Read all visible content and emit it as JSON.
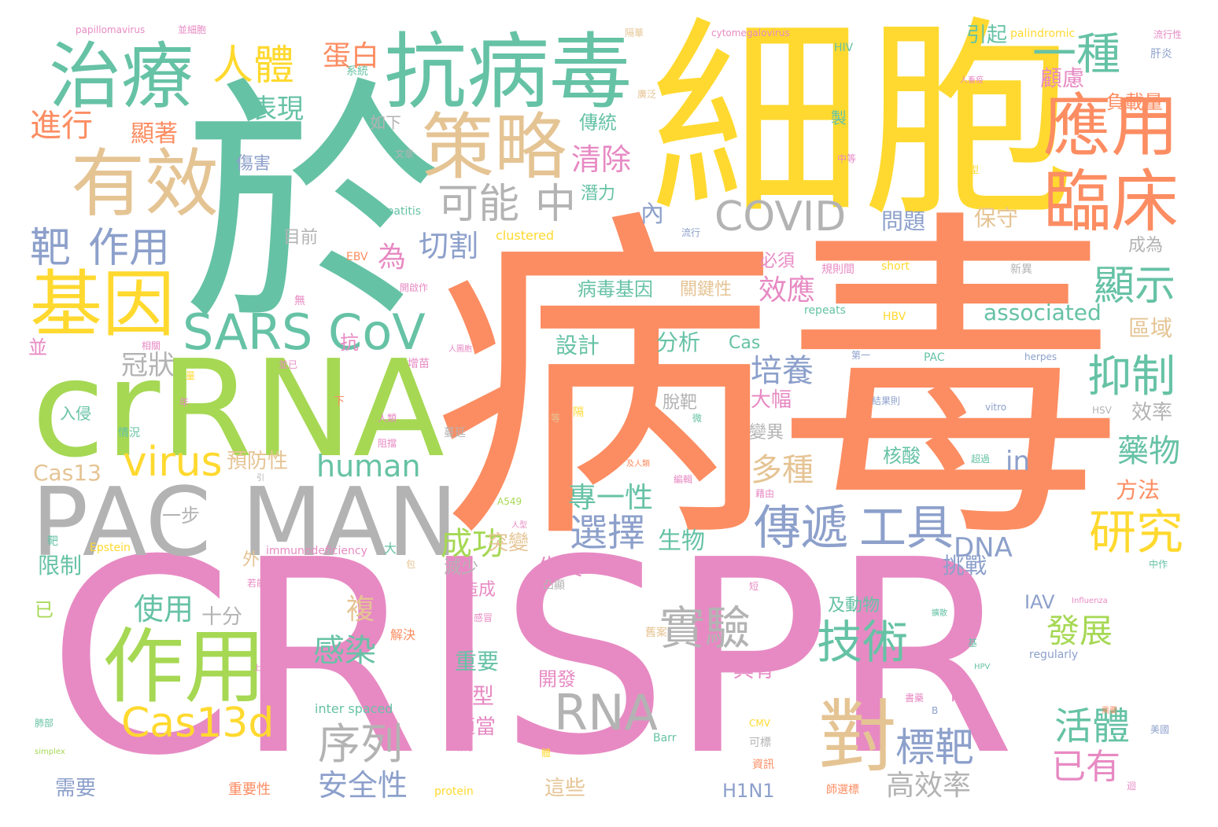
{
  "palette": {
    "pink": "#e78ac3",
    "orange": "#fc8d62",
    "teal": "#66c2a5",
    "yellow": "#ffd92f",
    "green": "#a6d854",
    "tan": "#e5c494",
    "grey": "#b3b3b3",
    "blue": "#8da0cb"
  },
  "words": [
    {
      "text": "CRISPR",
      "color": "pink"
    },
    {
      "text": "病毒",
      "color": "orange"
    },
    {
      "text": "細胞",
      "color": "yellow"
    },
    {
      "text": "於",
      "color": "teal"
    },
    {
      "text": "crRNA",
      "color": "green"
    },
    {
      "text": "PAC MAN",
      "color": "grey"
    },
    {
      "text": "抗病毒",
      "color": "teal"
    },
    {
      "text": "策略",
      "color": "tan"
    },
    {
      "text": "治療",
      "color": "teal"
    },
    {
      "text": "有效",
      "color": "tan"
    },
    {
      "text": "基因",
      "color": "yellow"
    },
    {
      "text": "作用",
      "color": "green"
    },
    {
      "text": "應用",
      "color": "orange"
    },
    {
      "text": "臨床",
      "color": "orange"
    },
    {
      "text": "SARS CoV",
      "color": "teal"
    },
    {
      "text": "COVID",
      "color": "grey"
    },
    {
      "text": "傳遞",
      "color": "blue"
    },
    {
      "text": "工具",
      "color": "blue"
    },
    {
      "text": "RNA",
      "color": "grey"
    },
    {
      "text": "對",
      "color": "tan"
    },
    {
      "text": "一種",
      "color": "teal"
    },
    {
      "text": "人體",
      "color": "yellow"
    },
    {
      "text": "靶",
      "color": "blue"
    },
    {
      "text": "作用",
      "color": "blue"
    },
    {
      "text": "可能",
      "color": "grey"
    },
    {
      "text": "中",
      "color": "grey"
    },
    {
      "text": "virus",
      "color": "yellow"
    },
    {
      "text": "Cas13d",
      "color": "yellow"
    },
    {
      "text": "實驗",
      "color": "grey"
    },
    {
      "text": "技術",
      "color": "teal"
    },
    {
      "text": "研究",
      "color": "yellow"
    },
    {
      "text": "抑制",
      "color": "teal"
    },
    {
      "text": "顯示",
      "color": "teal"
    },
    {
      "text": "序列",
      "color": "grey"
    },
    {
      "text": "標靶",
      "color": "blue"
    },
    {
      "text": "選擇",
      "color": "blue"
    },
    {
      "text": "活體",
      "color": "teal"
    },
    {
      "text": "已有",
      "color": "pink"
    },
    {
      "text": "進行",
      "color": "orange"
    },
    {
      "text": "表現",
      "color": "teal"
    },
    {
      "text": "蛋白",
      "color": "orange"
    },
    {
      "text": "清除",
      "color": "pink"
    },
    {
      "text": "切割",
      "color": "blue"
    },
    {
      "text": "冠狀",
      "color": "grey"
    },
    {
      "text": "培養",
      "color": "blue"
    },
    {
      "text": "多種",
      "color": "tan"
    },
    {
      "text": "human",
      "color": "teal"
    },
    {
      "text": "藥物",
      "color": "teal"
    },
    {
      "text": "發展",
      "color": "green"
    },
    {
      "text": "感染",
      "color": "teal"
    },
    {
      "text": "使用",
      "color": "teal"
    },
    {
      "text": "安全性",
      "color": "blue"
    },
    {
      "text": "成功",
      "color": "green"
    },
    {
      "text": "專一性",
      "color": "teal"
    },
    {
      "text": "DNA",
      "color": "blue"
    },
    {
      "text": "in",
      "color": "blue"
    },
    {
      "text": "高效率",
      "color": "grey"
    },
    {
      "text": "顧慮",
      "color": "pink"
    },
    {
      "text": "負載量",
      "color": "orange"
    },
    {
      "text": "顯著",
      "color": "orange"
    },
    {
      "text": "傳統",
      "color": "teal"
    },
    {
      "text": "為",
      "color": "pink"
    },
    {
      "text": "內",
      "color": "blue"
    },
    {
      "text": "病毒基因",
      "color": "teal"
    },
    {
      "text": "效應",
      "color": "pink"
    },
    {
      "text": "associated",
      "color": "teal"
    },
    {
      "text": "問題",
      "color": "blue"
    },
    {
      "text": "保守",
      "color": "tan"
    },
    {
      "text": "區域",
      "color": "tan"
    },
    {
      "text": "Cas13",
      "color": "tan"
    },
    {
      "text": "設計",
      "color": "teal"
    },
    {
      "text": "分析",
      "color": "teal"
    },
    {
      "text": "生長",
      "color": "pink"
    },
    {
      "text": "生物",
      "color": "teal"
    },
    {
      "text": "複",
      "color": "tan"
    },
    {
      "text": "突變",
      "color": "tan"
    },
    {
      "text": "挑戰",
      "color": "blue"
    },
    {
      "text": "效率",
      "color": "grey"
    },
    {
      "text": "方法",
      "color": "orange"
    },
    {
      "text": "限制",
      "color": "teal"
    },
    {
      "text": "十分",
      "color": "grey"
    },
    {
      "text": "一步",
      "color": "grey"
    },
    {
      "text": "預防性",
      "color": "tan"
    },
    {
      "text": "重要",
      "color": "teal"
    },
    {
      "text": "開發",
      "color": "pink"
    },
    {
      "text": "具有",
      "color": "pink"
    },
    {
      "text": "新型",
      "color": "pink"
    },
    {
      "text": "時",
      "color": "pink"
    },
    {
      "text": "適當",
      "color": "pink"
    },
    {
      "text": "這些",
      "color": "tan"
    },
    {
      "text": "需要",
      "color": "blue"
    },
    {
      "text": "H1N1",
      "color": "blue"
    },
    {
      "text": "IAV",
      "color": "blue"
    },
    {
      "text": "引起",
      "color": "teal"
    },
    {
      "text": "如下",
      "color": "grey"
    },
    {
      "text": "傷害",
      "color": "blue"
    },
    {
      "text": "潛力",
      "color": "teal"
    },
    {
      "text": "目前",
      "color": "grey"
    },
    {
      "text": "必須",
      "color": "pink"
    },
    {
      "text": "關鍵性",
      "color": "tan"
    },
    {
      "text": "成為",
      "color": "grey"
    },
    {
      "text": "大幅",
      "color": "pink"
    },
    {
      "text": "脫靶",
      "color": "grey"
    },
    {
      "text": "變異",
      "color": "grey"
    },
    {
      "text": "核酸",
      "color": "teal"
    },
    {
      "text": "及動物",
      "color": "teal"
    },
    {
      "text": "減少",
      "color": "grey"
    },
    {
      "text": "造成",
      "color": "pink"
    },
    {
      "text": "外",
      "color": "tan"
    },
    {
      "text": "抗",
      "color": "pink"
    },
    {
      "text": "並",
      "color": "pink"
    },
    {
      "text": "已",
      "color": "green"
    },
    {
      "text": "入侵",
      "color": "teal"
    },
    {
      "text": "Cas",
      "color": "teal"
    },
    {
      "text": "製",
      "color": "teal"
    },
    {
      "text": "palindromic",
      "color": "yellow"
    },
    {
      "text": "HIV",
      "color": "teal"
    },
    {
      "text": "肝炎",
      "color": "blue"
    },
    {
      "text": "流行性",
      "color": "pink"
    },
    {
      "text": "cytomegalovirus",
      "color": "pink"
    },
    {
      "text": "papillomavirus",
      "color": "pink"
    },
    {
      "text": "系統",
      "color": "teal"
    },
    {
      "text": "clustered",
      "color": "yellow"
    },
    {
      "text": "hepatitis",
      "color": "teal"
    },
    {
      "text": "EBV",
      "color": "orange"
    },
    {
      "text": "short",
      "color": "yellow"
    },
    {
      "text": "repeats",
      "color": "teal"
    },
    {
      "text": "HBV",
      "color": "yellow"
    },
    {
      "text": "規則間",
      "color": "pink"
    },
    {
      "text": "新異",
      "color": "grey"
    },
    {
      "text": "流行",
      "color": "blue"
    },
    {
      "text": "B型",
      "color": "yellow"
    },
    {
      "text": "中等",
      "color": "pink"
    },
    {
      "text": "文章",
      "color": "grey"
    },
    {
      "text": "廣泛",
      "color": "tan"
    },
    {
      "text": "人畜疫",
      "color": "pink"
    },
    {
      "text": "隔華",
      "color": "tan"
    },
    {
      "text": "並細胞",
      "color": "pink"
    },
    {
      "text": "PAC",
      "color": "teal"
    },
    {
      "text": "herpes",
      "color": "blue"
    },
    {
      "text": "vitro",
      "color": "blue"
    },
    {
      "text": "HSV",
      "color": "grey"
    },
    {
      "text": "第一",
      "color": "blue"
    },
    {
      "text": "結果則",
      "color": "blue"
    },
    {
      "text": "超過",
      "color": "teal"
    },
    {
      "text": "immunodeficiency",
      "color": "pink"
    },
    {
      "text": "Epstein",
      "color": "yellow"
    },
    {
      "text": "大",
      "color": "teal"
    },
    {
      "text": "A549",
      "color": "green"
    },
    {
      "text": "編輯",
      "color": "pink"
    },
    {
      "text": "藉由",
      "color": "pink"
    },
    {
      "text": "及人類",
      "color": "orange"
    },
    {
      "text": "凸顯",
      "color": "grey"
    },
    {
      "text": "Influenza",
      "color": "pink"
    },
    {
      "text": "中作",
      "color": "teal"
    },
    {
      "text": "regularly",
      "color": "blue"
    },
    {
      "text": "HPV",
      "color": "teal"
    },
    {
      "text": "inter spaced",
      "color": "teal"
    },
    {
      "text": "protein",
      "color": "yellow"
    },
    {
      "text": "Barr",
      "color": "teal"
    },
    {
      "text": "CMV",
      "color": "yellow"
    },
    {
      "text": "可標",
      "color": "grey"
    },
    {
      "text": "資訊",
      "color": "orange"
    },
    {
      "text": "師選標",
      "color": "orange"
    },
    {
      "text": "重要性",
      "color": "orange"
    },
    {
      "text": "simplex",
      "color": "green"
    },
    {
      "text": "B",
      "color": "blue"
    },
    {
      "text": "美國",
      "color": "blue"
    },
    {
      "text": "若能",
      "color": "pink"
    },
    {
      "text": "相關",
      "color": "pink"
    },
    {
      "text": "情況",
      "color": "teal"
    },
    {
      "text": "下",
      "color": "orange"
    },
    {
      "text": "靶",
      "color": "teal"
    },
    {
      "text": "解決",
      "color": "orange"
    },
    {
      "text": "感冒",
      "color": "pink"
    },
    {
      "text": "體",
      "color": "yellow"
    },
    {
      "text": "肺部",
      "color": "teal"
    },
    {
      "text": "量",
      "color": "yellow"
    },
    {
      "text": "年",
      "color": "pink"
    },
    {
      "text": "短",
      "color": "pink"
    },
    {
      "text": "蔓延",
      "color": "grey"
    },
    {
      "text": "無",
      "color": "pink"
    },
    {
      "text": "開啟作",
      "color": "pink"
    },
    {
      "text": "人類",
      "color": "pink"
    },
    {
      "text": "增苗",
      "color": "pink"
    },
    {
      "text": "並已",
      "color": "pink"
    },
    {
      "text": "隔",
      "color": "yellow"
    },
    {
      "text": "需要",
      "color": "orange"
    },
    {
      "text": "阻擋",
      "color": "pink"
    },
    {
      "text": "人型",
      "color": "pink"
    },
    {
      "text": "基",
      "color": "teal"
    },
    {
      "text": "迴",
      "color": "pink"
    },
    {
      "text": "舊案",
      "color": "tan"
    },
    {
      "text": "書藥",
      "color": "pink"
    },
    {
      "text": "人圖胞",
      "color": "pink"
    },
    {
      "text": "作為",
      "color": "pink"
    },
    {
      "text": "擴散",
      "color": "teal"
    },
    {
      "text": "上述",
      "color": "pink"
    },
    {
      "text": "等",
      "color": "tan"
    },
    {
      "text": "微",
      "color": "teal"
    },
    {
      "text": "產",
      "color": "pink"
    },
    {
      "text": "引",
      "color": "grey"
    },
    {
      "text": "包",
      "color": "tan"
    }
  ]
}
